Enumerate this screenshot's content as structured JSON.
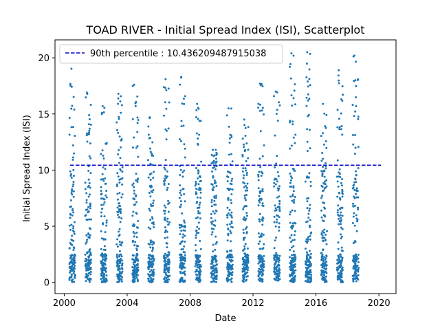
{
  "chart_data": {
    "type": "scatter",
    "title": "TOAD RIVER - Initial Spread Index (ISI), Scatterplot",
    "xlabel": "Date",
    "ylabel": "Initial Spread Index (ISI)",
    "x_axis_type": "date",
    "xlim": [
      "1999-06-01",
      "2021-02-01"
    ],
    "ylim": [
      -1.0,
      21.6
    ],
    "x_ticks": [
      "2000-01-01",
      "2004-01-01",
      "2008-01-01",
      "2012-01-01",
      "2016-01-01",
      "2020-01-01"
    ],
    "x_tick_labels": [
      "2000",
      "2004",
      "2008",
      "2012",
      "2016",
      "2020"
    ],
    "y_ticks": [
      0,
      5,
      10,
      15,
      20
    ],
    "y_tick_labels": [
      "0",
      "5",
      "10",
      "15",
      "20"
    ],
    "grid": false,
    "legend": {
      "placement": "upper-left",
      "entries": [
        "90th percentile : 10.436209487915038"
      ]
    },
    "reference_line": {
      "name": "90th percentile : 10.436209487915038",
      "y": 10.436209487915038,
      "style": "dashed",
      "color": "#0000cc"
    },
    "point_color": "#1f77b4",
    "seasons": [
      {
        "year": 2000,
        "start": "2000-05-01",
        "end": "2000-09-15",
        "max": 20.0
      },
      {
        "year": 2001,
        "start": "2001-05-01",
        "end": "2001-09-15",
        "max": 16.9
      },
      {
        "year": 2002,
        "start": "2002-05-01",
        "end": "2002-09-15",
        "max": 15.7
      },
      {
        "year": 2003,
        "start": "2003-05-01",
        "end": "2003-09-15",
        "max": 16.8
      },
      {
        "year": 2004,
        "start": "2004-05-01",
        "end": "2004-09-15",
        "max": 17.6
      },
      {
        "year": 2005,
        "start": "2005-05-01",
        "end": "2005-09-15",
        "max": 14.7
      },
      {
        "year": 2006,
        "start": "2006-05-01",
        "end": "2006-09-15",
        "max": 18.1
      },
      {
        "year": 2007,
        "start": "2007-05-01",
        "end": "2007-09-15",
        "max": 18.3
      },
      {
        "year": 2008,
        "start": "2008-05-01",
        "end": "2008-09-15",
        "max": 15.9
      },
      {
        "year": 2009,
        "start": "2009-05-01",
        "end": "2009-09-15",
        "max": 11.8
      },
      {
        "year": 2010,
        "start": "2010-05-01",
        "end": "2010-09-15",
        "max": 15.5
      },
      {
        "year": 2011,
        "start": "2011-05-01",
        "end": "2011-09-15",
        "max": 14.5
      },
      {
        "year": 2012,
        "start": "2012-05-01",
        "end": "2012-09-15",
        "max": 17.7
      },
      {
        "year": 2013,
        "start": "2013-05-01",
        "end": "2013-09-15",
        "max": 17.0
      },
      {
        "year": 2014,
        "start": "2014-05-01",
        "end": "2014-09-15",
        "max": 20.4
      },
      {
        "year": 2015,
        "start": "2015-05-01",
        "end": "2015-09-15",
        "max": 20.5
      },
      {
        "year": 2016,
        "start": "2016-05-01",
        "end": "2016-09-15",
        "max": 15.9
      },
      {
        "year": 2017,
        "start": "2017-05-01",
        "end": "2017-09-15",
        "max": 18.9
      },
      {
        "year": 2018,
        "start": "2018-05-01",
        "end": "2018-09-15",
        "max": 20.2
      }
    ],
    "points_per_season": 140
  }
}
